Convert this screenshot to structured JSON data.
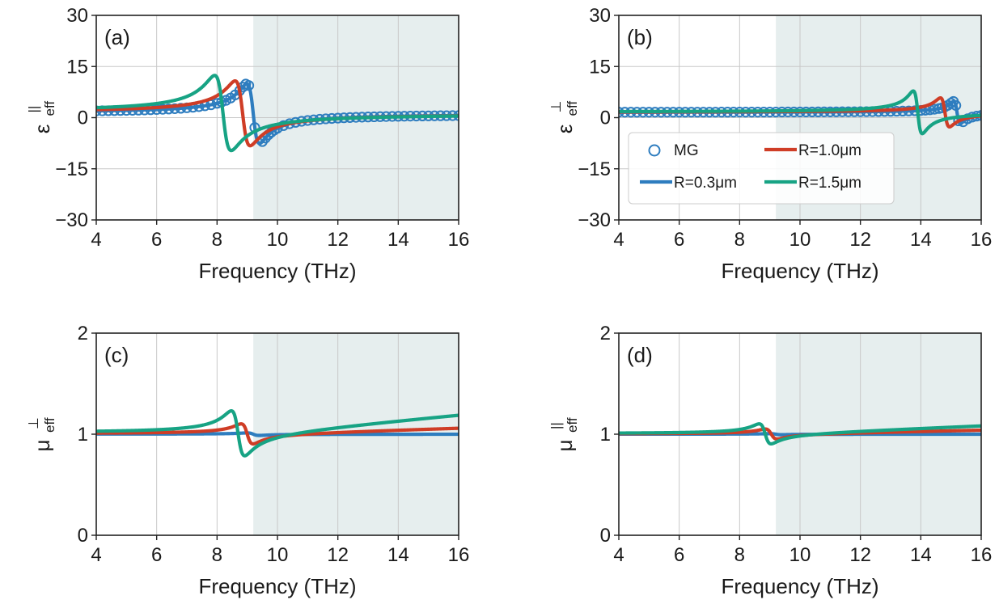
{
  "colors": {
    "mg": "#2e7dbf",
    "r03": "#2e7dbf",
    "r10": "#cf3d26",
    "r15": "#17a384",
    "shade": "#e6eeee",
    "grid": "#c8c8c8",
    "axis": "#222222"
  },
  "chart_data": [
    {
      "type": "line",
      "panel_label": "(a)",
      "xlabel": "Frequency (THz)",
      "ylabel": {
        "main": "ε",
        "sub": "eff",
        "sup": "||"
      },
      "xlim": [
        4,
        16
      ],
      "ylim": [
        -30,
        30
      ],
      "xticks": [
        4,
        6,
        8,
        10,
        12,
        14,
        16
      ],
      "yticks": [
        -30,
        -15,
        0,
        15,
        30
      ],
      "shaded_x_from": 9.2,
      "grid": true,
      "series": [
        {
          "key": "mg",
          "style": "markers",
          "f0": 9.2,
          "amp": 17.5,
          "w": 0.42,
          "base": 1,
          "markers_x": [
            4.0,
            4.2,
            4.4,
            4.6,
            4.8,
            5.0,
            5.2,
            5.4,
            5.6,
            5.8,
            6.0,
            6.2,
            6.4,
            6.6,
            6.8,
            7.0,
            7.2,
            7.4,
            7.6,
            7.8,
            8.0,
            8.15,
            8.3,
            8.45,
            8.6,
            8.75,
            8.85,
            8.95,
            9.05,
            9.25,
            9.5,
            9.6,
            9.7,
            9.8,
            9.9,
            10.0,
            10.2,
            10.4,
            10.6,
            10.8,
            11.0,
            11.2,
            11.4,
            11.6,
            11.8,
            12.0,
            12.2,
            12.4,
            12.6,
            12.8,
            13.0,
            13.2,
            13.4,
            13.6,
            13.8,
            14.0,
            14.2,
            14.4,
            14.6,
            14.8,
            15.0,
            15.2,
            15.4,
            15.6,
            15.8,
            16.0
          ]
        },
        {
          "key": "r03",
          "style": "line",
          "f0": 9.2,
          "amp": 17.5,
          "w": 0.42,
          "base": 1
        },
        {
          "key": "r10",
          "style": "line",
          "f0": 8.85,
          "amp": 19,
          "w": 0.5,
          "base": 1
        },
        {
          "key": "r15",
          "style": "line",
          "f0": 8.2,
          "amp": 22,
          "w": 0.55,
          "base": 1
        }
      ]
    },
    {
      "type": "line",
      "panel_label": "(b)",
      "xlabel": "Frequency (THz)",
      "ylabel": {
        "main": "ε",
        "sub": "eff",
        "sup": "⊥"
      },
      "xlim": [
        4,
        16
      ],
      "ylim": [
        -30,
        30
      ],
      "xticks": [
        4,
        6,
        8,
        10,
        12,
        14,
        16
      ],
      "yticks": [
        -30,
        -15,
        0,
        15,
        30
      ],
      "shaded_x_from": 9.2,
      "grid": true,
      "legend": {
        "placement": "center-right",
        "entries": [
          {
            "key": "mg",
            "label": "MG"
          },
          {
            "key": "r10",
            "label": "R=1.0μm"
          },
          {
            "key": "r03",
            "label": "R=0.3μm"
          },
          {
            "key": "r15",
            "label": "R=1.5μm"
          }
        ]
      },
      "series": [
        {
          "key": "mg",
          "style": "markers",
          "f0": 15.2,
          "amp": 6.5,
          "w": 0.22,
          "base": 1.5,
          "markers_x": [
            4.0,
            4.2,
            4.4,
            4.6,
            4.8,
            5.0,
            5.2,
            5.4,
            5.6,
            5.8,
            6.0,
            6.2,
            6.4,
            6.6,
            6.8,
            7.0,
            7.2,
            7.4,
            7.6,
            7.8,
            8.0,
            8.2,
            8.4,
            8.6,
            8.8,
            9.0,
            9.2,
            9.4,
            9.6,
            9.8,
            10.0,
            10.2,
            10.4,
            10.6,
            10.8,
            11.0,
            11.2,
            11.4,
            11.6,
            11.8,
            12.0,
            12.2,
            12.4,
            12.6,
            12.8,
            13.0,
            13.2,
            13.4,
            13.6,
            13.8,
            14.0,
            14.15,
            14.3,
            14.45,
            14.6,
            14.7,
            14.8,
            14.9,
            15.0,
            15.08,
            15.16,
            15.25,
            15.4,
            15.55,
            15.7,
            15.85,
            16.0
          ]
        },
        {
          "key": "r03",
          "style": "line",
          "f0": 15.2,
          "amp": 6.5,
          "w": 0.22,
          "base": 1.5
        },
        {
          "key": "r10",
          "style": "line",
          "f0": 14.8,
          "amp": 8.5,
          "w": 0.3,
          "base": 1.5
        },
        {
          "key": "r15",
          "style": "line",
          "f0": 13.9,
          "amp": 12.5,
          "w": 0.3,
          "base": 1.5
        }
      ]
    },
    {
      "type": "line",
      "panel_label": "(c)",
      "xlabel": "Frequency (THz)",
      "ylabel": {
        "main": "μ",
        "sub": "eff",
        "sup": "⊥"
      },
      "xlim": [
        4,
        16
      ],
      "ylim": [
        0,
        2
      ],
      "xticks": [
        4,
        6,
        8,
        10,
        12,
        14,
        16
      ],
      "yticks": [
        0,
        1,
        2
      ],
      "shaded_x_from": 9.2,
      "grid": true,
      "series": [
        {
          "key": "r03",
          "style": "line",
          "f0": 9.2,
          "amp": 0.025,
          "w": 0.4,
          "base": 1,
          "slope": 0
        },
        {
          "key": "r10",
          "style": "line",
          "f0": 9.0,
          "amp": 0.2,
          "w": 0.4,
          "base": 1,
          "slope": 0.006
        },
        {
          "key": "r15",
          "style": "line",
          "f0": 8.7,
          "amp": 0.45,
          "w": 0.45,
          "base": 1,
          "slope": 0.018
        }
      ]
    },
    {
      "type": "line",
      "panel_label": "(d)",
      "xlabel": "Frequency (THz)",
      "ylabel": {
        "main": "μ",
        "sub": "eff",
        "sup": "||"
      },
      "xlim": [
        4,
        16
      ],
      "ylim": [
        0,
        2
      ],
      "xticks": [
        4,
        6,
        8,
        10,
        12,
        14,
        16
      ],
      "yticks": [
        0,
        1,
        2
      ],
      "shaded_x_from": 9.2,
      "grid": true,
      "series": [
        {
          "key": "r03",
          "style": "line",
          "f0": 9.2,
          "amp": 0.01,
          "w": 0.4,
          "base": 1,
          "slope": 0
        },
        {
          "key": "r10",
          "style": "line",
          "f0": 9.05,
          "amp": 0.1,
          "w": 0.4,
          "base": 1,
          "slope": 0.004
        },
        {
          "key": "r15",
          "style": "line",
          "f0": 8.85,
          "amp": 0.2,
          "w": 0.4,
          "base": 1,
          "slope": 0.008
        }
      ]
    }
  ]
}
